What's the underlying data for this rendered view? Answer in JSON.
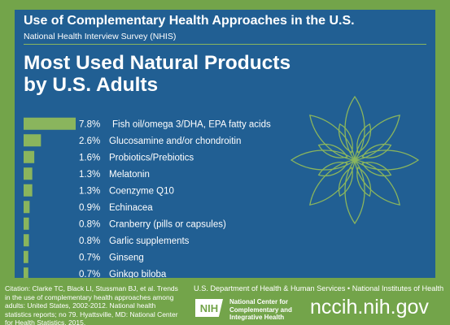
{
  "header": {
    "title": "Use of Complementary Health Approaches in the U.S.",
    "subtitle": "National Health Interview Survey (NHIS)"
  },
  "main_title": [
    "Most Used Natural Products",
    "by U.S. Adults"
  ],
  "colors": {
    "background_green": "#73a44a",
    "panel_blue": "#215f93",
    "bar_green": "#8ab55d",
    "text_white": "#ffffff"
  },
  "chart_data": {
    "type": "bar",
    "orientation": "horizontal",
    "title": "Most Used Natural Products by U.S. Adults",
    "categories": [
      "Fish oil/omega 3/DHA, EPA fatty acids",
      "Glucosamine and/or chondroitin",
      "Probiotics/Prebiotics",
      "Melatonin",
      "Coenzyme Q10",
      "Echinacea",
      "Cranberry (pills or capsules)",
      "Garlic supplements",
      "Ginseng",
      "Ginkgo biloba"
    ],
    "values": [
      7.8,
      2.6,
      1.6,
      1.3,
      1.3,
      0.9,
      0.8,
      0.8,
      0.7,
      0.7
    ],
    "value_labels": [
      "7.8%",
      "2.6%",
      "1.6%",
      "1.3%",
      "1.3%",
      "0.9%",
      "0.8%",
      "0.8%",
      "0.7%",
      "0.7%"
    ],
    "grid": false,
    "legend": "none"
  },
  "footer": {
    "citation": "Citation: Clarke TC, Black LI, Stussman BJ, et al. Trends in the use of complementary health approaches among adults: United States, 2002-2012. National health statistics reports; no 79. Hyattsville, MD: National Center for Health Statistics. 2015.",
    "department": "U.S. Department of Health & Human Services • National Institutes of Health",
    "logo_text": "NIH",
    "center_name": [
      "National Center for",
      "Complementary and",
      "Integrative Health"
    ],
    "website": "nccih.nih.gov"
  }
}
